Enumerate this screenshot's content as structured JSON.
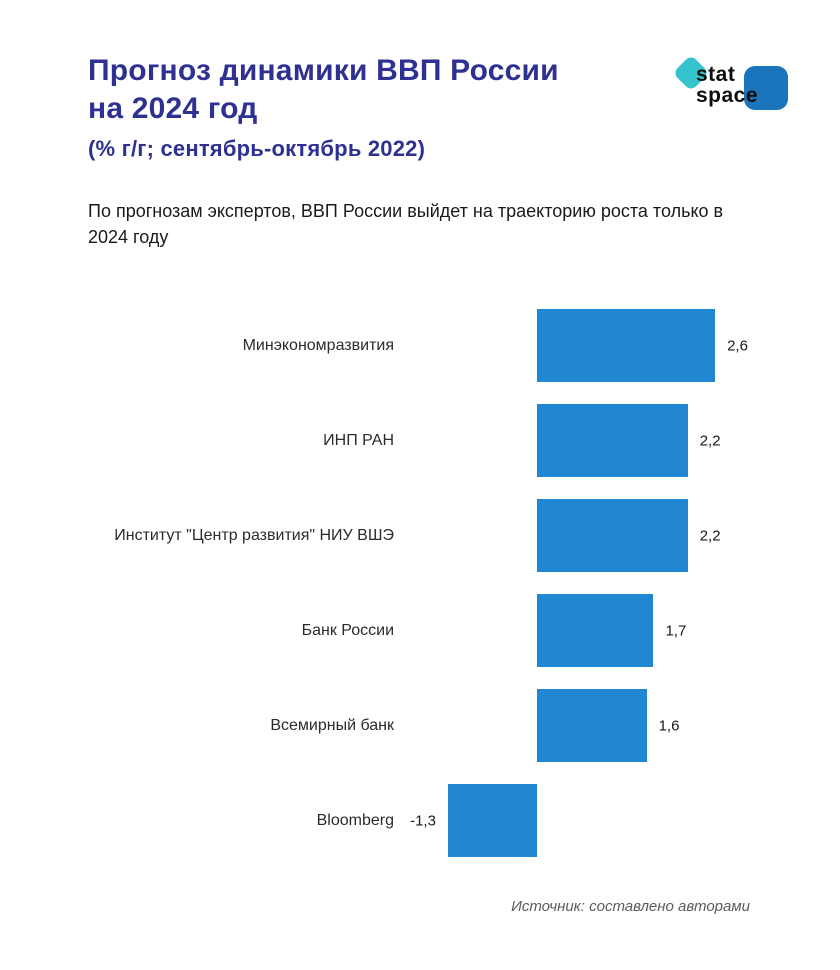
{
  "header": {
    "title_line1": "Прогноз динамики ВВП России",
    "title_line2": "на 2024 год",
    "subtitle": "(% г/г; сентябрь-октябрь 2022)",
    "description": "По прогнозам экспертов, ВВП России выйдет на траекторию роста только в 2024 году"
  },
  "logo": {
    "line1": "stat",
    "line2": "space",
    "teal_color": "#35c3cd",
    "blue_color": "#1b75bc"
  },
  "chart_data": {
    "type": "bar",
    "orientation": "horizontal",
    "title": "Прогноз динамики ВВП России на 2024 год",
    "subtitle": "(% г/г; сентябрь-октябрь 2022)",
    "categories": [
      "Минэкономразвития",
      "ИНП РАН",
      "Институт \"Центр развития\" НИУ ВШЭ",
      "Банк России",
      "Всемирный банк",
      "Bloomberg"
    ],
    "values": [
      2.6,
      2.2,
      2.2,
      1.7,
      1.6,
      -1.3
    ],
    "value_labels": [
      "2,6",
      "2,2",
      "2,2",
      "1,7",
      "1,6",
      "-1,3"
    ],
    "bar_color": "#2287d2",
    "xlim": [
      -2,
      4.4
    ],
    "grid": false,
    "legend": false,
    "xlabel": "",
    "ylabel": ""
  },
  "footer": {
    "source": "Источник: составлено авторами"
  },
  "colors": {
    "title": "#2e3192",
    "bar": "#2287d2",
    "source_text": "#5c5c5c"
  }
}
